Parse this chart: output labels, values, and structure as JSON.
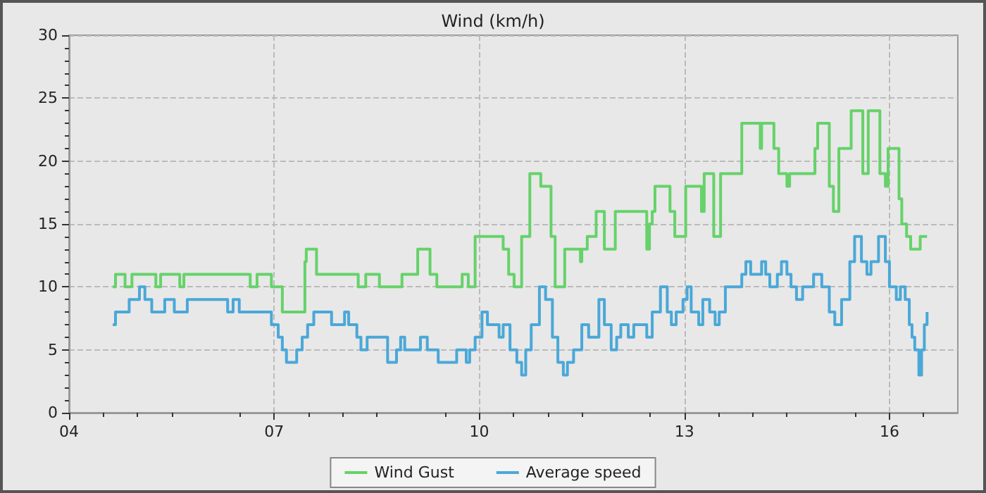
{
  "chart_data": {
    "type": "step",
    "title": "Wind (km/h)",
    "xlim": [
      4,
      17
    ],
    "xticks": [
      {
        "value": 4,
        "label": "04"
      },
      {
        "value": 7,
        "label": "07"
      },
      {
        "value": 10,
        "label": "10"
      },
      {
        "value": 13,
        "label": "13"
      },
      {
        "value": 16,
        "label": "16"
      }
    ],
    "ylim": [
      0,
      30
    ],
    "yticks": [
      0,
      5,
      10,
      15,
      20,
      25,
      30
    ],
    "grid": true,
    "legend": "bottom",
    "line_style": "solid",
    "marker": "none",
    "series": [
      {
        "name": "Wind Gust",
        "color": "#66d26a",
        "x": [
          4.64,
          4.68,
          4.82,
          4.92,
          5.27,
          5.34,
          5.62,
          5.68,
          6.65,
          6.75,
          6.96,
          7.12,
          7.45,
          7.47,
          7.62,
          8.23,
          8.34,
          8.54,
          8.87,
          9.1,
          9.28,
          9.38,
          9.75,
          9.84,
          9.94,
          10.35,
          10.43,
          10.51,
          10.62,
          10.74,
          10.9,
          11.05,
          11.11,
          11.25,
          11.48,
          11.5,
          11.58,
          11.71,
          11.83,
          11.99,
          12.45,
          12.49,
          12.53,
          12.57,
          12.79,
          12.86,
          13.02,
          13.25,
          13.29,
          13.43,
          13.53,
          13.84,
          14.11,
          14.13,
          14.31,
          14.38,
          14.5,
          14.54,
          14.91,
          14.95,
          15.12,
          15.18,
          15.26,
          15.44,
          15.61,
          15.69,
          15.86,
          15.94,
          15.98,
          16.14,
          16.18,
          16.25,
          16.31,
          16.45,
          16.55
        ],
        "values": [
          10,
          11,
          10,
          11,
          10,
          11,
          10,
          11,
          10,
          11,
          10,
          8,
          12,
          13,
          11,
          10,
          11,
          10,
          11,
          13,
          11,
          10,
          11,
          10,
          14,
          13,
          11,
          10,
          14,
          19,
          18,
          14,
          10,
          13,
          12,
          13,
          14,
          16,
          13,
          16,
          13,
          15,
          16,
          18,
          16,
          14,
          18,
          16,
          19,
          14,
          19,
          23,
          21,
          23,
          21,
          19,
          18,
          19,
          21,
          23,
          18,
          16,
          21,
          24,
          19,
          24,
          19,
          18,
          21,
          17,
          15,
          14,
          13,
          14,
          14
        ]
      },
      {
        "name": "Average speed",
        "color": "#4aa8d8",
        "x": [
          4.64,
          4.68,
          4.88,
          5.03,
          5.11,
          5.21,
          5.4,
          5.54,
          5.73,
          6.32,
          6.4,
          6.49,
          6.96,
          7.06,
          7.12,
          7.18,
          7.33,
          7.41,
          7.49,
          7.58,
          7.84,
          8.03,
          8.09,
          8.21,
          8.27,
          8.36,
          8.66,
          8.79,
          8.85,
          8.91,
          9.14,
          9.24,
          9.4,
          9.67,
          9.81,
          9.86,
          9.94,
          10.04,
          10.12,
          10.29,
          10.35,
          10.45,
          10.55,
          10.62,
          10.68,
          10.76,
          10.88,
          10.97,
          11.07,
          11.15,
          11.23,
          11.29,
          11.38,
          11.5,
          11.6,
          11.75,
          11.83,
          11.93,
          12.01,
          12.07,
          12.18,
          12.26,
          12.45,
          12.53,
          12.65,
          12.75,
          12.81,
          12.88,
          12.98,
          13.04,
          13.1,
          13.21,
          13.27,
          13.37,
          13.45,
          13.51,
          13.6,
          13.84,
          13.9,
          13.97,
          14.13,
          14.19,
          14.25,
          14.36,
          14.42,
          14.5,
          14.56,
          14.64,
          14.73,
          14.89,
          15.01,
          15.12,
          15.2,
          15.3,
          15.42,
          15.49,
          15.59,
          15.67,
          15.73,
          15.84,
          15.94,
          16,
          16.1,
          16.16,
          16.23,
          16.29,
          16.33,
          16.37,
          16.43,
          16.47,
          16.51,
          16.55
        ],
        "values": [
          7,
          8,
          9,
          10,
          9,
          8,
          9,
          8,
          9,
          8,
          9,
          8,
          7,
          6,
          5,
          4,
          5,
          6,
          7,
          8,
          7,
          8,
          7,
          6,
          5,
          6,
          4,
          5,
          6,
          5,
          6,
          5,
          4,
          5,
          4,
          5,
          6,
          8,
          7,
          6,
          7,
          5,
          4,
          3,
          5,
          7,
          10,
          9,
          6,
          4,
          3,
          4,
          5,
          7,
          6,
          9,
          7,
          5,
          6,
          7,
          6,
          7,
          6,
          8,
          10,
          8,
          7,
          8,
          9,
          10,
          8,
          7,
          9,
          8,
          7,
          8,
          10,
          11,
          12,
          11,
          12,
          11,
          10,
          11,
          12,
          11,
          10,
          9,
          10,
          11,
          10,
          8,
          7,
          9,
          12,
          14,
          12,
          11,
          12,
          14,
          12,
          10,
          9,
          10,
          9,
          7,
          6,
          5,
          3,
          5,
          7,
          8
        ]
      }
    ]
  }
}
